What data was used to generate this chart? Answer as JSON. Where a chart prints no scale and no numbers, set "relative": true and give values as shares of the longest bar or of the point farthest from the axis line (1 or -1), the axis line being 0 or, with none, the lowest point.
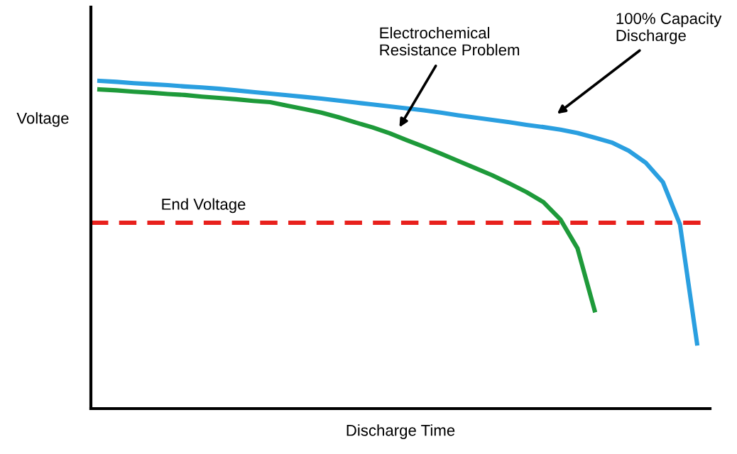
{
  "chart_data": {
    "type": "line",
    "relative": true,
    "xlabel": "Discharge Time",
    "ylabel": "Voltage",
    "tick_labels": false,
    "marker": "none",
    "line_style": "solid",
    "categories": [
      null,
      null,
      null,
      null,
      null,
      null,
      null,
      null,
      null,
      null,
      null,
      null,
      null,
      null,
      null,
      null,
      null,
      null,
      null,
      null,
      null,
      null,
      null,
      null,
      null,
      null,
      null,
      null,
      null,
      null,
      null,
      null,
      null,
      null,
      null,
      null
    ],
    "series": [
      {
        "color": "#2a9fe0",
        "values": [
          1.0,
          0.997,
          0.993,
          0.99,
          0.987,
          0.983,
          0.98,
          0.976,
          0.971,
          0.966,
          0.961,
          0.956,
          0.951,
          0.946,
          0.94,
          0.934,
          0.928,
          0.922,
          0.916,
          0.91,
          0.903,
          0.895,
          0.888,
          0.881,
          0.874,
          0.866,
          0.859,
          0.851,
          0.841,
          0.827,
          0.812,
          0.787,
          0.75,
          0.691,
          0.562,
          0.199
        ]
      },
      {
        "color": "#1e9a3a",
        "values": [
          0.974,
          0.971,
          0.967,
          0.964,
          0.96,
          0.957,
          0.952,
          0.948,
          0.944,
          0.939,
          0.935,
          0.924,
          0.914,
          0.903,
          0.889,
          0.873,
          0.858,
          0.84,
          0.819,
          0.799,
          0.778,
          0.756,
          0.734,
          0.712,
          0.687,
          0.661,
          0.63,
          0.577,
          0.489,
          0.3,
          null,
          null,
          null,
          null,
          null,
          null
        ]
      }
    ],
    "ref_lines": [
      {
        "axis": "y",
        "value": 0.567,
        "label": "End Voltage",
        "color": "#e8201c",
        "line_style": "dashed"
      }
    ],
    "annotations": [
      "Electrochemical\nResistance Problem",
      "100% Capacity\nDischarge"
    ]
  }
}
